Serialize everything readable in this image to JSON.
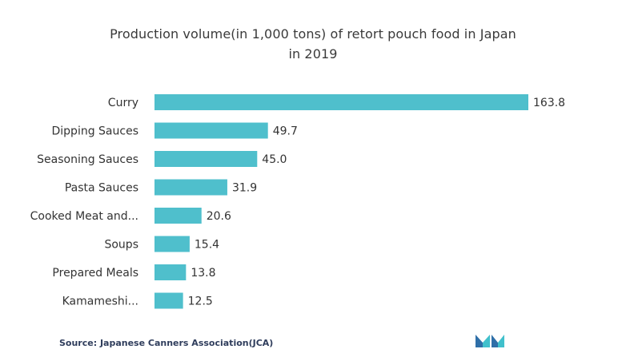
{
  "chart_data": {
    "type": "bar",
    "orientation": "horizontal",
    "title_line1": "Production volume(in 1,000 tons) of retort pouch food in Japan",
    "title_line2": "in 2019",
    "categories": [
      "Curry",
      "Dipping Sauces",
      "Seasoning Sauces",
      "Pasta Sauces",
      "Cooked Meat and...",
      "Soups",
      "Prepared Meals",
      "Kamameshi..."
    ],
    "values": [
      163.8,
      49.7,
      45.0,
      31.9,
      20.6,
      15.4,
      13.8,
      12.5
    ],
    "value_labels": [
      "163.8",
      "49.7",
      "45.0",
      "31.9",
      "20.6",
      "15.4",
      "13.8",
      "12.5"
    ],
    "xlim": [
      0,
      163.8
    ],
    "grid": false,
    "bar_color": "#4fbfcc"
  },
  "source": "Source: Japanese Canners Association(JCA)",
  "brand": {
    "logo_icon": "mordor-logo-icon",
    "logo_colors": [
      "#2f6fa8",
      "#40c0cc"
    ]
  }
}
